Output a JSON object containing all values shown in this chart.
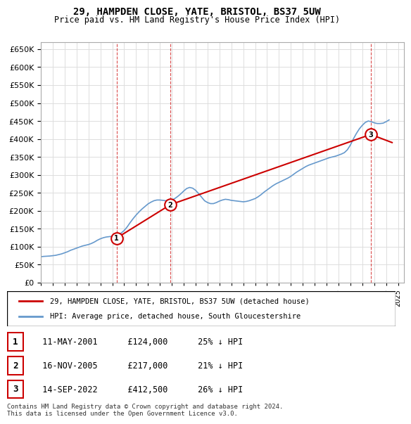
{
  "title": "29, HAMPDEN CLOSE, YATE, BRISTOL, BS37 5UW",
  "subtitle": "Price paid vs. HM Land Registry's House Price Index (HPI)",
  "xlabel": "",
  "ylabel": "",
  "ylim": [
    0,
    670000
  ],
  "yticks": [
    0,
    50000,
    100000,
    150000,
    200000,
    250000,
    300000,
    350000,
    400000,
    450000,
    500000,
    550000,
    600000,
    650000
  ],
  "xlim_start": 1995.0,
  "xlim_end": 2025.5,
  "background_color": "#ffffff",
  "grid_color": "#dddddd",
  "hpi_color": "#6699cc",
  "price_color": "#cc0000",
  "transactions": [
    {
      "num": 1,
      "date": "11-MAY-2001",
      "price": 124000,
      "pct": "25%",
      "direction": "↓",
      "x": 2001.36
    },
    {
      "num": 2,
      "date": "16-NOV-2005",
      "price": 217000,
      "pct": "21%",
      "direction": "↓",
      "x": 2005.88
    },
    {
      "num": 3,
      "date": "14-SEP-2022",
      "price": 412500,
      "pct": "26%",
      "direction": "↓",
      "x": 2022.71
    }
  ],
  "legend_label_price": "29, HAMPDEN CLOSE, YATE, BRISTOL, BS37 5UW (detached house)",
  "legend_label_hpi": "HPI: Average price, detached house, South Gloucestershire",
  "footer": "Contains HM Land Registry data © Crown copyright and database right 2024.\nThis data is licensed under the Open Government Licence v3.0.",
  "hpi_data": {
    "years": [
      1995.0,
      1995.25,
      1995.5,
      1995.75,
      1996.0,
      1996.25,
      1996.5,
      1996.75,
      1997.0,
      1997.25,
      1997.5,
      1997.75,
      1998.0,
      1998.25,
      1998.5,
      1998.75,
      1999.0,
      1999.25,
      1999.5,
      1999.75,
      2000.0,
      2000.25,
      2000.5,
      2000.75,
      2001.0,
      2001.25,
      2001.5,
      2001.75,
      2002.0,
      2002.25,
      2002.5,
      2002.75,
      2003.0,
      2003.25,
      2003.5,
      2003.75,
      2004.0,
      2004.25,
      2004.5,
      2004.75,
      2005.0,
      2005.25,
      2005.5,
      2005.75,
      2006.0,
      2006.25,
      2006.5,
      2006.75,
      2007.0,
      2007.25,
      2007.5,
      2007.75,
      2008.0,
      2008.25,
      2008.5,
      2008.75,
      2009.0,
      2009.25,
      2009.5,
      2009.75,
      2010.0,
      2010.25,
      2010.5,
      2010.75,
      2011.0,
      2011.25,
      2011.5,
      2011.75,
      2012.0,
      2012.25,
      2012.5,
      2012.75,
      2013.0,
      2013.25,
      2013.5,
      2013.75,
      2014.0,
      2014.25,
      2014.5,
      2014.75,
      2015.0,
      2015.25,
      2015.5,
      2015.75,
      2016.0,
      2016.25,
      2016.5,
      2016.75,
      2017.0,
      2017.25,
      2017.5,
      2017.75,
      2018.0,
      2018.25,
      2018.5,
      2018.75,
      2019.0,
      2019.25,
      2019.5,
      2019.75,
      2020.0,
      2020.25,
      2020.5,
      2020.75,
      2021.0,
      2021.25,
      2021.5,
      2021.75,
      2022.0,
      2022.25,
      2022.5,
      2022.75,
      2023.0,
      2023.25,
      2023.5,
      2023.75,
      2024.0,
      2024.25
    ],
    "values": [
      72000,
      73000,
      73500,
      74000,
      75000,
      76000,
      78000,
      80000,
      83000,
      86000,
      90000,
      93000,
      96000,
      99000,
      102000,
      104000,
      106000,
      109000,
      113000,
      118000,
      122000,
      125000,
      127000,
      128000,
      129000,
      131000,
      134000,
      138000,
      145000,
      155000,
      167000,
      178000,
      188000,
      197000,
      205000,
      212000,
      219000,
      224000,
      228000,
      230000,
      230000,
      229000,
      228000,
      228000,
      230000,
      234000,
      240000,
      247000,
      255000,
      262000,
      265000,
      263000,
      257000,
      248000,
      238000,
      228000,
      223000,
      220000,
      220000,
      223000,
      227000,
      230000,
      232000,
      231000,
      229000,
      228000,
      227000,
      226000,
      225000,
      226000,
      228000,
      231000,
      234000,
      239000,
      245000,
      252000,
      258000,
      264000,
      270000,
      275000,
      279000,
      283000,
      287000,
      291000,
      296000,
      302000,
      308000,
      313000,
      318000,
      323000,
      327000,
      330000,
      333000,
      336000,
      339000,
      342000,
      345000,
      348000,
      350000,
      352000,
      355000,
      358000,
      362000,
      370000,
      383000,
      400000,
      415000,
      428000,
      438000,
      446000,
      450000,
      448000,
      445000,
      443000,
      443000,
      444000,
      448000,
      453000
    ]
  },
  "price_line_data": {
    "segments": [
      {
        "x": [
          2001.36,
          2005.88
        ],
        "y": [
          124000,
          217000
        ]
      },
      {
        "x": [
          2005.88,
          2022.71
        ],
        "y": [
          217000,
          412500
        ]
      },
      {
        "x": [
          2022.71,
          2024.5
        ],
        "y": [
          412500,
          390000
        ]
      }
    ]
  }
}
